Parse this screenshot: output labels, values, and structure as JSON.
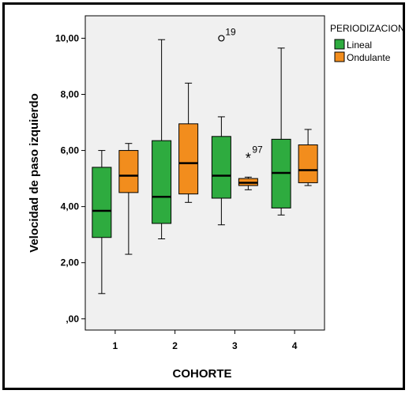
{
  "chart_data": {
    "type": "boxplot",
    "xlabel": "COHORTE",
    "ylabel": "Velocidad de paso izquierdo",
    "ylim": [
      -0.4,
      10.8
    ],
    "ytick_values": [
      0,
      2,
      4,
      6,
      8,
      10
    ],
    "ytick_labels": [
      ",00",
      "2,00",
      "4,00",
      "6,00",
      "8,00",
      "10,00"
    ],
    "categories": [
      "1",
      "2",
      "3",
      "4"
    ],
    "legend_title": "PERIODIZACION",
    "legend_position": "top-right",
    "series": [
      {
        "name": "Lineal",
        "color": "#2eab3f",
        "boxes": [
          {
            "min": 0.9,
            "q1": 2.9,
            "median": 3.85,
            "q3": 5.4,
            "max": 6.0
          },
          {
            "min": 2.85,
            "q1": 3.4,
            "median": 4.35,
            "q3": 6.35,
            "max": 9.95
          },
          {
            "min": 3.35,
            "q1": 4.3,
            "median": 5.1,
            "q3": 6.5,
            "max": 7.2
          },
          {
            "min": 3.7,
            "q1": 3.95,
            "median": 5.2,
            "q3": 6.4,
            "max": 9.65
          }
        ]
      },
      {
        "name": "Ondulante",
        "color": "#f28d1d",
        "boxes": [
          {
            "min": 2.3,
            "q1": 4.5,
            "median": 5.1,
            "q3": 6.0,
            "max": 6.25
          },
          {
            "min": 4.15,
            "q1": 4.45,
            "median": 5.55,
            "q3": 6.95,
            "max": 8.4
          },
          {
            "min": 4.6,
            "q1": 4.75,
            "median": 4.85,
            "q3": 5.0,
            "max": 5.05
          },
          {
            "min": 4.75,
            "q1": 4.85,
            "median": 5.3,
            "q3": 6.2,
            "max": 6.75
          }
        ]
      }
    ],
    "outliers": [
      {
        "category": "3",
        "series": "Lineal",
        "value": 10.0,
        "marker": "o",
        "label": "19"
      },
      {
        "category": "3",
        "series": "Ondulante",
        "value": 5.8,
        "marker": "*",
        "label": "97"
      }
    ]
  }
}
